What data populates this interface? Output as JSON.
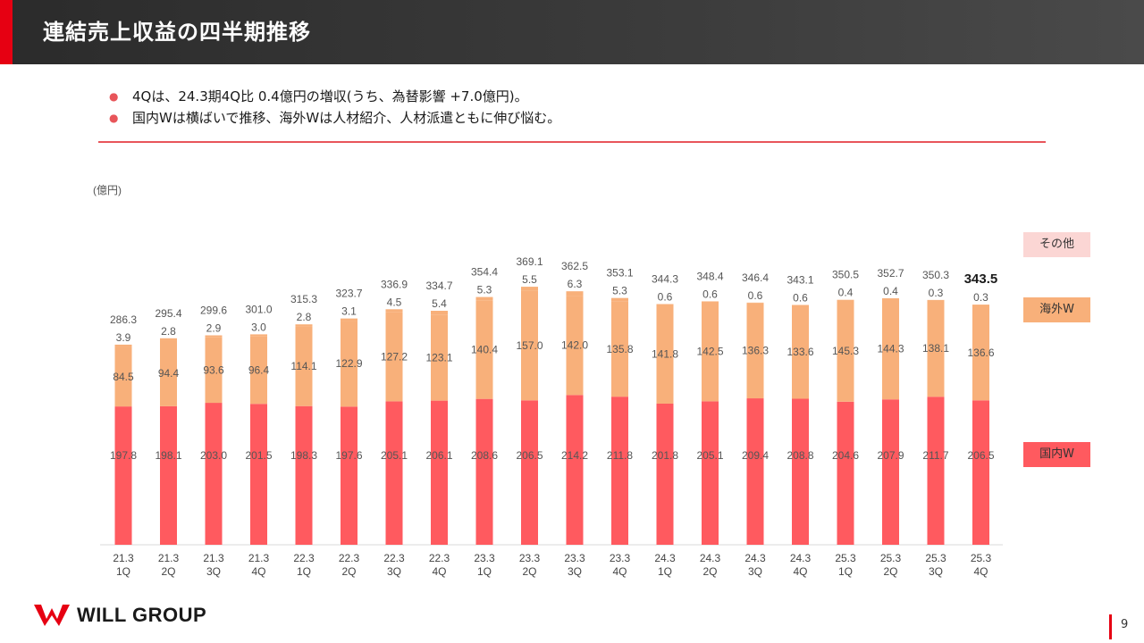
{
  "header": {
    "title": "連結売上収益の四半期推移"
  },
  "bullets": [
    "4Qは、24.3期4Q比 0.4億円の増収(うち、為替影響 +7.0億円)。",
    "国内Wは横ばいで推移、海外Wは人材紹介、人材派遣ともに伸び悩む。"
  ],
  "bullet_marker": "●",
  "legend": {
    "other": "その他",
    "overseas": "海外W",
    "domestic": "国内W"
  },
  "colors": {
    "domestic": "#ff5a5f",
    "overseas": "#f8b07a",
    "other": "#fbd6d4",
    "accent": "#e60012"
  },
  "footer": {
    "brand": "WILL GROUP",
    "page": "9"
  },
  "chart_data": {
    "type": "bar",
    "stacked": true,
    "unit_label": "(億円)",
    "categories": [
      "21.3\n1Q",
      "21.3\n2Q",
      "21.3\n3Q",
      "21.3\n4Q",
      "22.3\n1Q",
      "22.3\n2Q",
      "22.3\n3Q",
      "22.3\n4Q",
      "23.3\n1Q",
      "23.3\n2Q",
      "23.3\n3Q",
      "23.3\n4Q",
      "24.3\n1Q",
      "24.3\n2Q",
      "24.3\n3Q",
      "24.3\n4Q",
      "25.3\n1Q",
      "25.3\n2Q",
      "25.3\n3Q",
      "25.3\n4Q"
    ],
    "series": [
      {
        "name": "国内W",
        "values": [
          197.8,
          198.1,
          203.0,
          201.5,
          198.3,
          197.6,
          205.1,
          206.1,
          208.6,
          206.5,
          214.2,
          211.8,
          201.8,
          205.1,
          209.4,
          208.8,
          204.6,
          207.9,
          211.7,
          206.5
        ]
      },
      {
        "name": "海外W",
        "values": [
          84.5,
          94.4,
          93.6,
          96.4,
          114.1,
          122.9,
          127.2,
          123.1,
          140.4,
          157.0,
          142.0,
          135.8,
          141.8,
          142.5,
          136.3,
          133.6,
          145.3,
          144.3,
          138.1,
          136.6
        ]
      },
      {
        "name": "その他",
        "values": [
          3.9,
          2.8,
          2.9,
          3.0,
          2.8,
          3.1,
          4.5,
          5.4,
          5.3,
          5.5,
          6.3,
          5.3,
          0.6,
          0.6,
          0.6,
          0.6,
          0.4,
          0.4,
          0.3,
          0.3
        ]
      }
    ],
    "totals": [
      286.3,
      295.4,
      299.6,
      301.0,
      315.3,
      323.7,
      336.9,
      334.7,
      354.4,
      369.1,
      362.5,
      353.1,
      344.3,
      348.4,
      346.4,
      343.1,
      350.5,
      352.7,
      350.3,
      343.5
    ],
    "highlight_last_total": true,
    "ylim": [
      0,
      400
    ]
  }
}
